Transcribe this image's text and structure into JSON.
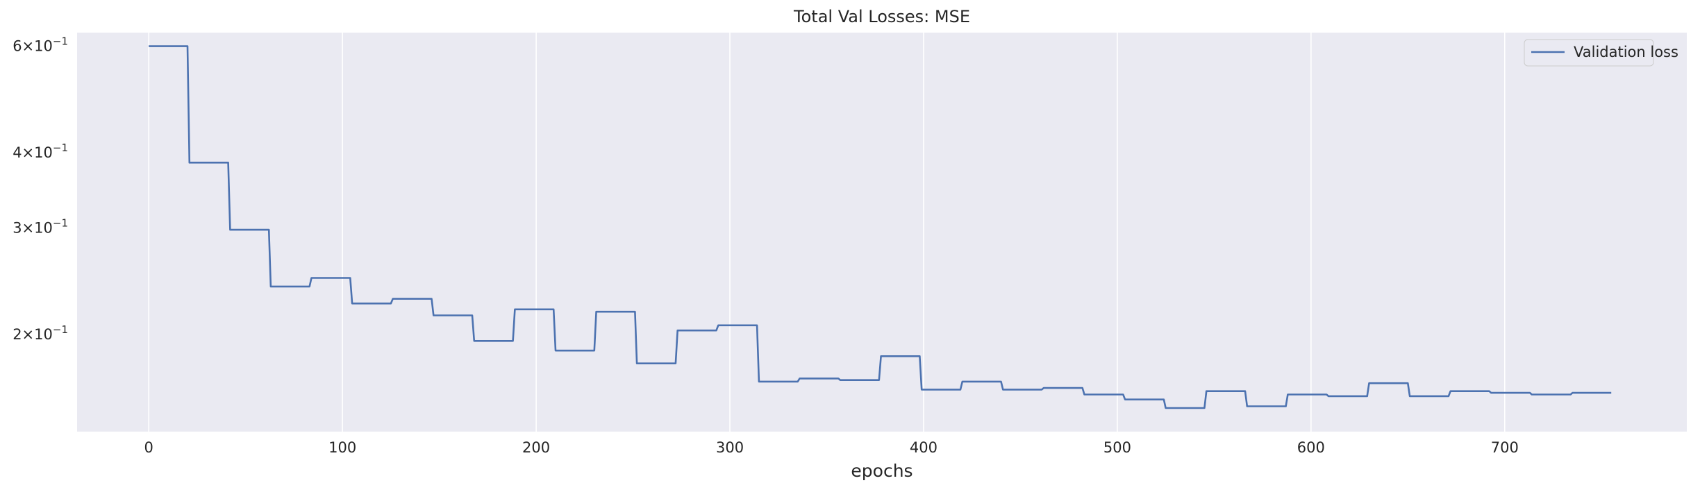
{
  "chart_data": {
    "type": "line",
    "title": "Total Val Losses:  MSE",
    "xlabel": "epochs",
    "ylabel": "",
    "xlim": [
      -37,
      794
    ],
    "ylim": [
      0.138,
      0.632
    ],
    "yscale": "log",
    "grid": "vertical lines only",
    "legend_position": "top-right",
    "x_ticks": [
      0,
      100,
      200,
      300,
      400,
      500,
      600,
      700
    ],
    "y_ticks": [
      {
        "value": 0.6,
        "mantissa": "6",
        "base": "10",
        "exp": "−1"
      },
      {
        "value": 0.4,
        "mantissa": "4",
        "base": "10",
        "exp": "−1"
      },
      {
        "value": 0.3,
        "mantissa": "3",
        "base": "10",
        "exp": "−1"
      },
      {
        "value": 0.2,
        "mantissa": "2",
        "base": "10",
        "exp": "−1"
      }
    ],
    "colors": {
      "background": "#eaeaf2",
      "grid": "#ffffff",
      "line": "#4c72b0"
    },
    "series": [
      {
        "name": "Validation loss",
        "steps": [
          {
            "x_start": 0,
            "x_end": 20,
            "y": 0.6
          },
          {
            "x_start": 21,
            "x_end": 41,
            "y": 0.385
          },
          {
            "x_start": 42,
            "x_end": 62,
            "y": 0.298
          },
          {
            "x_start": 63,
            "x_end": 83,
            "y": 0.24
          },
          {
            "x_start": 84,
            "x_end": 104,
            "y": 0.248
          },
          {
            "x_start": 105,
            "x_end": 125,
            "y": 0.225
          },
          {
            "x_start": 126,
            "x_end": 146,
            "y": 0.229
          },
          {
            "x_start": 147,
            "x_end": 167,
            "y": 0.215
          },
          {
            "x_start": 168,
            "x_end": 188,
            "y": 0.195
          },
          {
            "x_start": 189,
            "x_end": 209,
            "y": 0.22
          },
          {
            "x_start": 210,
            "x_end": 230,
            "y": 0.188
          },
          {
            "x_start": 231,
            "x_end": 251,
            "y": 0.218
          },
          {
            "x_start": 252,
            "x_end": 272,
            "y": 0.179
          },
          {
            "x_start": 273,
            "x_end": 293,
            "y": 0.203
          },
          {
            "x_start": 294,
            "x_end": 314,
            "y": 0.207
          },
          {
            "x_start": 315,
            "x_end": 335,
            "y": 0.167
          },
          {
            "x_start": 336,
            "x_end": 356,
            "y": 0.169
          },
          {
            "x_start": 357,
            "x_end": 377,
            "y": 0.168
          },
          {
            "x_start": 378,
            "x_end": 398,
            "y": 0.184
          },
          {
            "x_start": 399,
            "x_end": 419,
            "y": 0.162
          },
          {
            "x_start": 420,
            "x_end": 440,
            "y": 0.167
          },
          {
            "x_start": 441,
            "x_end": 461,
            "y": 0.162
          },
          {
            "x_start": 462,
            "x_end": 482,
            "y": 0.163
          },
          {
            "x_start": 483,
            "x_end": 503,
            "y": 0.159
          },
          {
            "x_start": 504,
            "x_end": 524,
            "y": 0.156
          },
          {
            "x_start": 525,
            "x_end": 545,
            "y": 0.151
          },
          {
            "x_start": 546,
            "x_end": 566,
            "y": 0.161
          },
          {
            "x_start": 567,
            "x_end": 587,
            "y": 0.152
          },
          {
            "x_start": 588,
            "x_end": 608,
            "y": 0.159
          },
          {
            "x_start": 609,
            "x_end": 629,
            "y": 0.158
          },
          {
            "x_start": 630,
            "x_end": 650,
            "y": 0.166
          },
          {
            "x_start": 651,
            "x_end": 671,
            "y": 0.158
          },
          {
            "x_start": 672,
            "x_end": 692,
            "y": 0.161
          },
          {
            "x_start": 693,
            "x_end": 713,
            "y": 0.16
          },
          {
            "x_start": 714,
            "x_end": 734,
            "y": 0.159
          },
          {
            "x_start": 735,
            "x_end": 755,
            "y": 0.16
          }
        ]
      }
    ]
  }
}
